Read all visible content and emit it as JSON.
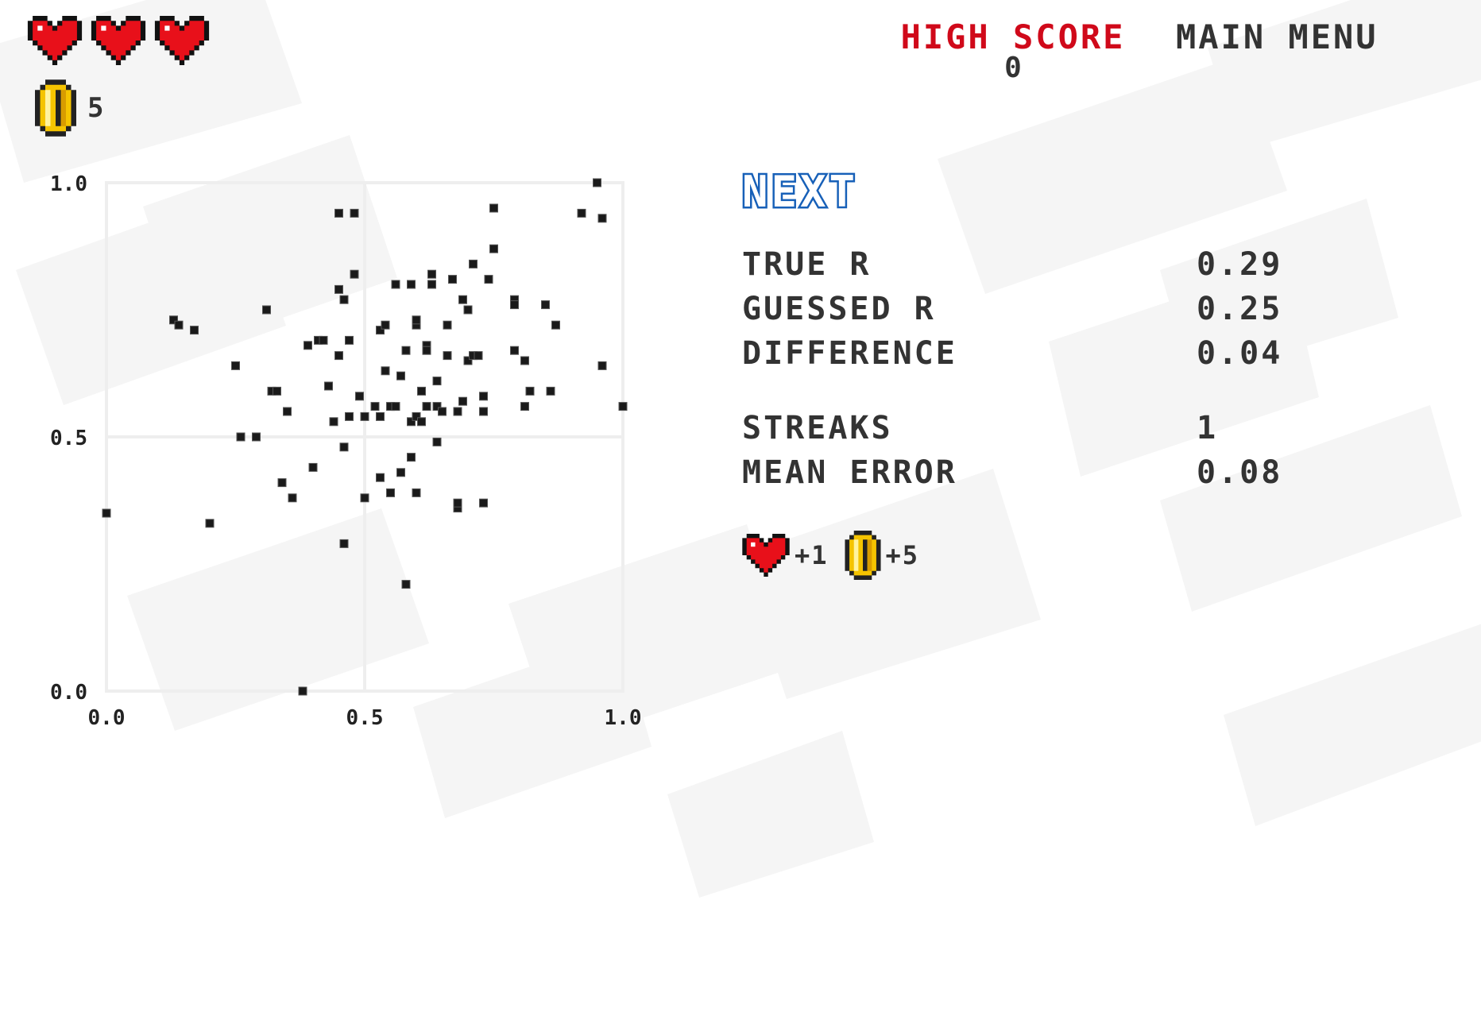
{
  "hud": {
    "lives": 3,
    "heart_icon": "heart-icon",
    "coin_icon": "coin-icon",
    "coins": "5",
    "high_score_label": "HIGH SCORE",
    "high_score_value": "0",
    "main_menu_label": "MAIN MENU"
  },
  "colors": {
    "heart": "#e8101a",
    "high_score": "#d0091a",
    "next_button": "#1565c0",
    "coin": "#f5c400",
    "text": "#333333",
    "grid": "#eeeeee",
    "background_pattern": "#f5f5f5"
  },
  "results": {
    "next_label": "NEXT",
    "true_r_label": "TRUE R",
    "true_r_value": "0.29",
    "guessed_r_label": "GUESSED R",
    "guessed_r_value": "0.25",
    "difference_label": "DIFFERENCE",
    "difference_value": "0.04",
    "streaks_label": "STREAKS",
    "streaks_value": "1",
    "mean_error_label": "MEAN ERROR",
    "mean_error_value": "0.08",
    "reward_lives": "+1",
    "reward_coins": "+5"
  },
  "chart_data": {
    "type": "scatter",
    "xlim": [
      0,
      1
    ],
    "ylim": [
      0,
      1
    ],
    "xticks": [
      "0.0",
      "0.5",
      "1.0"
    ],
    "yticks": [
      "0.0",
      "0.5",
      "1.0"
    ],
    "grid": true,
    "points": [
      [
        0.0,
        0.35
      ],
      [
        0.13,
        0.73
      ],
      [
        0.14,
        0.72
      ],
      [
        0.17,
        0.71
      ],
      [
        0.2,
        0.33
      ],
      [
        0.25,
        0.64
      ],
      [
        0.26,
        0.5
      ],
      [
        0.29,
        0.5
      ],
      [
        0.31,
        0.75
      ],
      [
        0.32,
        0.59
      ],
      [
        0.33,
        0.59
      ],
      [
        0.34,
        0.41
      ],
      [
        0.35,
        0.55
      ],
      [
        0.36,
        0.38
      ],
      [
        0.38,
        0.0
      ],
      [
        0.39,
        0.68
      ],
      [
        0.4,
        0.44
      ],
      [
        0.41,
        0.69
      ],
      [
        0.42,
        0.69
      ],
      [
        0.43,
        0.6
      ],
      [
        0.44,
        0.53
      ],
      [
        0.45,
        0.66
      ],
      [
        0.45,
        0.94
      ],
      [
        0.45,
        0.79
      ],
      [
        0.46,
        0.77
      ],
      [
        0.46,
        0.48
      ],
      [
        0.46,
        0.29
      ],
      [
        0.47,
        0.69
      ],
      [
        0.47,
        0.54
      ],
      [
        0.48,
        0.82
      ],
      [
        0.48,
        0.94
      ],
      [
        0.49,
        0.58
      ],
      [
        0.5,
        0.38
      ],
      [
        0.5,
        0.54
      ],
      [
        0.52,
        0.56
      ],
      [
        0.53,
        0.71
      ],
      [
        0.53,
        0.54
      ],
      [
        0.53,
        0.42
      ],
      [
        0.54,
        0.72
      ],
      [
        0.54,
        0.63
      ],
      [
        0.55,
        0.56
      ],
      [
        0.55,
        0.39
      ],
      [
        0.56,
        0.8
      ],
      [
        0.56,
        0.56
      ],
      [
        0.57,
        0.43
      ],
      [
        0.57,
        0.62
      ],
      [
        0.58,
        0.67
      ],
      [
        0.58,
        0.21
      ],
      [
        0.59,
        0.8
      ],
      [
        0.59,
        0.46
      ],
      [
        0.59,
        0.53
      ],
      [
        0.6,
        0.54
      ],
      [
        0.6,
        0.39
      ],
      [
        0.6,
        0.72
      ],
      [
        0.6,
        0.73
      ],
      [
        0.61,
        0.59
      ],
      [
        0.61,
        0.53
      ],
      [
        0.62,
        0.68
      ],
      [
        0.62,
        0.67
      ],
      [
        0.62,
        0.56
      ],
      [
        0.63,
        0.8
      ],
      [
        0.63,
        0.82
      ],
      [
        0.64,
        0.61
      ],
      [
        0.64,
        0.56
      ],
      [
        0.64,
        0.49
      ],
      [
        0.65,
        0.55
      ],
      [
        0.66,
        0.72
      ],
      [
        0.66,
        0.66
      ],
      [
        0.67,
        0.81
      ],
      [
        0.68,
        0.55
      ],
      [
        0.68,
        0.36
      ],
      [
        0.68,
        0.37
      ],
      [
        0.69,
        0.57
      ],
      [
        0.69,
        0.77
      ],
      [
        0.7,
        0.75
      ],
      [
        0.7,
        0.65
      ],
      [
        0.71,
        0.84
      ],
      [
        0.71,
        0.66
      ],
      [
        0.72,
        0.66
      ],
      [
        0.73,
        0.58
      ],
      [
        0.73,
        0.55
      ],
      [
        0.73,
        0.37
      ],
      [
        0.74,
        0.81
      ],
      [
        0.75,
        0.87
      ],
      [
        0.75,
        0.95
      ],
      [
        0.79,
        0.77
      ],
      [
        0.79,
        0.76
      ],
      [
        0.79,
        0.67
      ],
      [
        0.81,
        0.56
      ],
      [
        0.81,
        0.65
      ],
      [
        0.82,
        0.59
      ],
      [
        0.85,
        0.76
      ],
      [
        0.86,
        0.59
      ],
      [
        0.87,
        0.72
      ],
      [
        0.92,
        0.94
      ],
      [
        0.95,
        1.0
      ],
      [
        0.96,
        0.93
      ],
      [
        0.96,
        0.64
      ],
      [
        1.0,
        0.56
      ]
    ]
  }
}
